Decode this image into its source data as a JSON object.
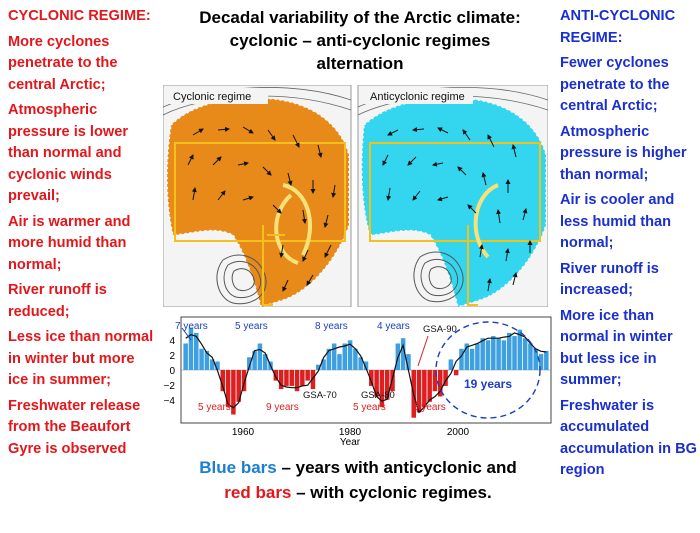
{
  "title": {
    "line1": "Decadal variability of the Arctic climate:",
    "line2": "cyclonic – anti-cyclonic regimes",
    "line3": "alternation"
  },
  "left_panel": {
    "heading": "CYCLONIC REGIME:",
    "items": [
      "More cyclones penetrate to the central Arctic;",
      "Atmospheric pressure is lower than normal and cyclonic winds prevail;",
      "Air is warmer and more humid than normal;",
      "River runoff is reduced;",
      "Less ice than normal in winter but more ice in summer;",
      "Freshwater release from the Beaufort Gyre is observed"
    ],
    "color": "#e3171b"
  },
  "right_panel": {
    "heading_line1": "ANTI-CYCLONIC",
    "heading_line2": "REGIME:",
    "items": [
      "Fewer cyclones penetrate to the central Arctic;",
      "Atmospheric pressure is higher than normal;",
      "Air is cooler and less humid than normal;",
      "River runoff is increased;",
      "More ice than normal in winter but less ice in summer;",
      "Freshwater is accumulated accumulation in BG region"
    ],
    "color": "#1a2fd0"
  },
  "maps": {
    "left_label": "Cyclonic regime",
    "right_label": "Anticyclonic regime",
    "left_fill": "#e88a1a",
    "right_fill": "#33d6ee",
    "frame_color": "#f2c21a"
  },
  "bar_chart": {
    "y_ticks": [
      "4",
      "2",
      "0",
      "−2",
      "−4"
    ],
    "x_ticks": [
      "1960",
      "1980",
      "2000"
    ],
    "x_label": "Year",
    "period_labels": {
      "top": [
        "7 years",
        "5 years",
        "8 years",
        "4 years",
        "GSA-90"
      ],
      "bottom": [
        "5 years",
        "9 years",
        "GSA-70",
        "GSA-80",
        "5 years",
        "8 years"
      ],
      "highlight": "19 years"
    },
    "positive_color": "#3ea0e0",
    "negative_color": "#dd1f1f"
  },
  "caption": {
    "blue_part": "Blue bars",
    "text1": " – years with anticyclonic and",
    "red_part": "red bars",
    "text2": " – with cyclonic regimes."
  },
  "chart_data": {
    "type": "bar",
    "title": "",
    "xlabel": "Year",
    "ylabel": "",
    "ylim": [
      -5,
      5
    ],
    "x": [
      1946,
      1947,
      1948,
      1949,
      1950,
      1951,
      1952,
      1953,
      1954,
      1955,
      1956,
      1957,
      1958,
      1959,
      1960,
      1961,
      1962,
      1963,
      1964,
      1965,
      1966,
      1967,
      1968,
      1969,
      1970,
      1971,
      1972,
      1973,
      1974,
      1975,
      1976,
      1977,
      1978,
      1979,
      1980,
      1981,
      1982,
      1983,
      1984,
      1985,
      1986,
      1987,
      1988,
      1989,
      1990,
      1991,
      1992,
      1993,
      1994,
      1995,
      1996,
      1997,
      1998,
      1999,
      2000,
      2001,
      2002,
      2003,
      2004,
      2005,
      2006,
      2007,
      2008,
      2009,
      2010,
      2011,
      2012,
      2013,
      2014
    ],
    "values": [
      2.5,
      4.0,
      3.5,
      2.0,
      1.8,
      1.0,
      0.8,
      -2.0,
      -3.5,
      -4.2,
      -3.0,
      -2.0,
      1.2,
      1.8,
      2.5,
      1.5,
      0.8,
      -1.0,
      -1.8,
      -1.5,
      -1.5,
      -2.0,
      -1.5,
      -1.0,
      -1.8,
      0.5,
      1.0,
      2.0,
      2.5,
      1.5,
      2.5,
      2.8,
      2.0,
      1.2,
      0.8,
      -1.5,
      -2.5,
      -3.5,
      -2.8,
      -2.0,
      2.5,
      3.0,
      1.5,
      -4.5,
      -4.0,
      -3.5,
      -3.0,
      -2.0,
      -2.5,
      -1.5,
      1.0,
      -0.5,
      2.0,
      2.5,
      2.0,
      2.5,
      3.0,
      2.8,
      3.2,
      3.0,
      2.8,
      3.5,
      3.2,
      3.8,
      3.0,
      2.5,
      2.0,
      1.5,
      1.8
    ]
  }
}
